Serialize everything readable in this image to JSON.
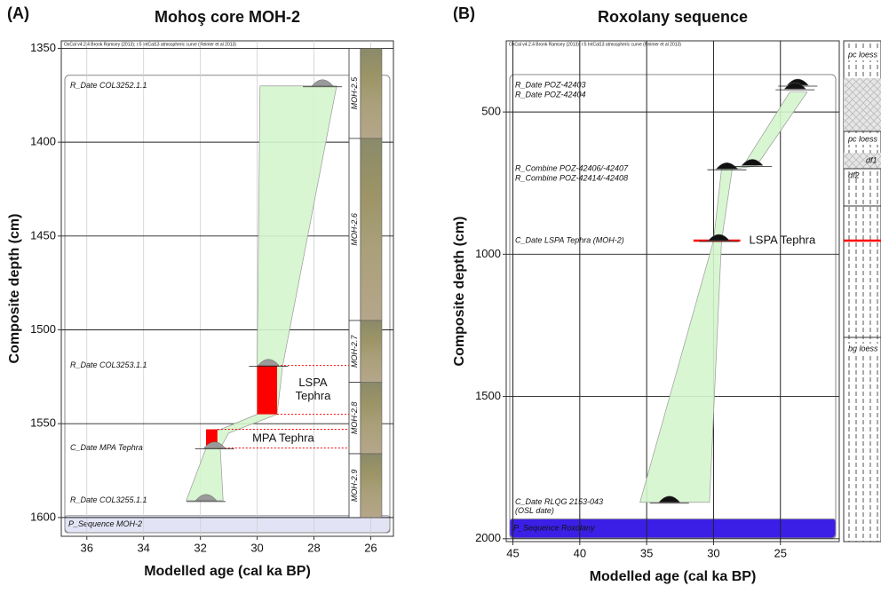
{
  "chart_data": [
    {
      "type": "age-depth",
      "panel": "(A)",
      "title": "Mohoş core MOH-2",
      "credit": "OxCal v4.2.4 Bronk Ramsey (2013); r:5 IntCal13 atmospheric curve (Reimer et al 2013)",
      "x_label": "Modelled age (cal ka BP)",
      "y_label": "Composite depth (cm)",
      "xlim": [
        36.9,
        25.2
      ],
      "xticks": [
        36,
        34,
        32,
        30,
        28,
        26
      ],
      "ylim": [
        1346,
        1610
      ],
      "yticks": [
        1350,
        1400,
        1450,
        1500,
        1550,
        1600
      ],
      "grid": true,
      "envelope_color": "#d4f5cc",
      "mark_color": "#9a9a9a",
      "dates": [
        {
          "label": "R_Date COL3252.1.1",
          "depth": 1370,
          "age": 27.7
        },
        {
          "label": "R_Date COL3253.1.1",
          "depth": 1519,
          "age": 29.6
        },
        {
          "label": "C_Date MPA Tephra",
          "depth": 1563,
          "age": 31.5
        },
        {
          "label": "R_Date COL3255.1.1",
          "depth": 1591,
          "age": 31.8
        }
      ],
      "envelope": {
        "depth": [
          1370,
          1519,
          1545,
          1555,
          1563,
          1591
        ],
        "older": [
          29.9,
          30.0,
          30.0,
          31.6,
          31.8,
          32.5
        ],
        "younger": [
          27.2,
          29.1,
          29.3,
          31.0,
          31.3,
          31.2
        ]
      },
      "tephra": [
        {
          "lines": [
            "LSPA",
            "Tephra"
          ],
          "top": 1519,
          "bottom": 1545,
          "older": 30.0,
          "younger": 29.3,
          "color": "#ff0000"
        },
        {
          "lines": [
            "MPA Tephra"
          ],
          "top": 1553,
          "bottom": 1563,
          "older": 31.8,
          "younger": 31.4,
          "color": "#ff0000"
        }
      ],
      "core_units": [
        {
          "label": "MOH-2.5",
          "top": 1350,
          "bottom": 1398
        },
        {
          "label": "MOH-2.6",
          "top": 1398,
          "bottom": 1495
        },
        {
          "label": "MOH-2.7",
          "top": 1495,
          "bottom": 1528
        },
        {
          "label": "MOH-2.8",
          "top": 1528,
          "bottom": 1566
        },
        {
          "label": "MOH-2.9",
          "top": 1566,
          "bottom": 1600
        }
      ],
      "sequence": {
        "label": "P_Sequence MOH-2",
        "top": 1599,
        "color": "#e3e3f6"
      }
    },
    {
      "type": "age-depth",
      "panel": "(B)",
      "title": "Roxolany sequence",
      "credit": "OxCal v4.2.4 Bronk Ramsey (2013); r:5 IntCal13 atmospheric curve (Reimer et al 2013)",
      "x_label": "Modelled age (cal ka BP)",
      "y_label": "Composite depth (cm)",
      "xlim": [
        45.5,
        20.6
      ],
      "xticks": [
        45,
        40,
        35,
        30,
        25
      ],
      "ylim": [
        250,
        2010
      ],
      "yticks": [
        500,
        1000,
        1500,
        2000
      ],
      "grid": true,
      "envelope_color": "#d4f5cc",
      "mark_color": "#111111",
      "dates": [
        {
          "label": "R_Date POZ-42403",
          "depth": 406,
          "age": 23.7
        },
        {
          "label": "R_Date POZ-42404",
          "depth": 419,
          "age": 23.9
        },
        {
          "label": "R_Combine POZ-42406/-42407",
          "depth": 700,
          "age": 29.0
        },
        {
          "label": "R_Combine POZ-42414/-42408",
          "depth": 688,
          "age": 27.1
        },
        {
          "label": "C_Date LSPA Tephra (MOH-2)",
          "depth": 952,
          "age": 29.6
        },
        {
          "label": "C_Date RLQG 2153-043",
          "note": "(OSL date)",
          "depth": 1872,
          "age": 33.3
        }
      ],
      "envelope": {
        "depth": [
          1872,
          952,
          700,
          690,
          430
        ],
        "older": [
          35.5,
          30.0,
          29.4,
          27.8,
          24.3
        ],
        "younger": [
          30.3,
          29.4,
          28.6,
          26.8,
          23.0
        ]
      },
      "tephra_line": {
        "label": "LSPA Tephra",
        "depth": 952,
        "older": 31.5,
        "younger": 28.0,
        "color": "#ff0000"
      },
      "stratigraphy": [
        "pc loess",
        "pc loess",
        "df1",
        "df2",
        "bg loess"
      ],
      "sequence": {
        "label": "P_Sequence Roxolany",
        "top": 1930,
        "color": "#3c1fe6"
      }
    }
  ]
}
